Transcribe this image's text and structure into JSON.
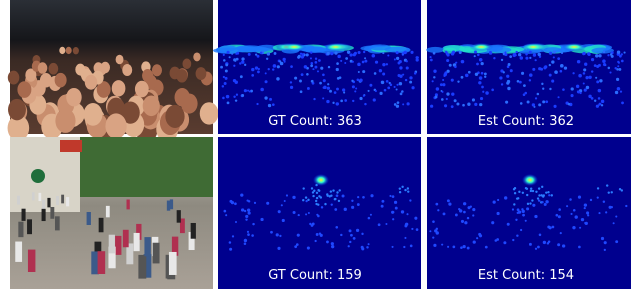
{
  "rows": [
    {
      "gt_label": "GT Count: 363",
      "est_label": "Est Count: 362"
    },
    {
      "gt_label": "GT Count: 159",
      "est_label": "Est Count: 154"
    }
  ]
}
